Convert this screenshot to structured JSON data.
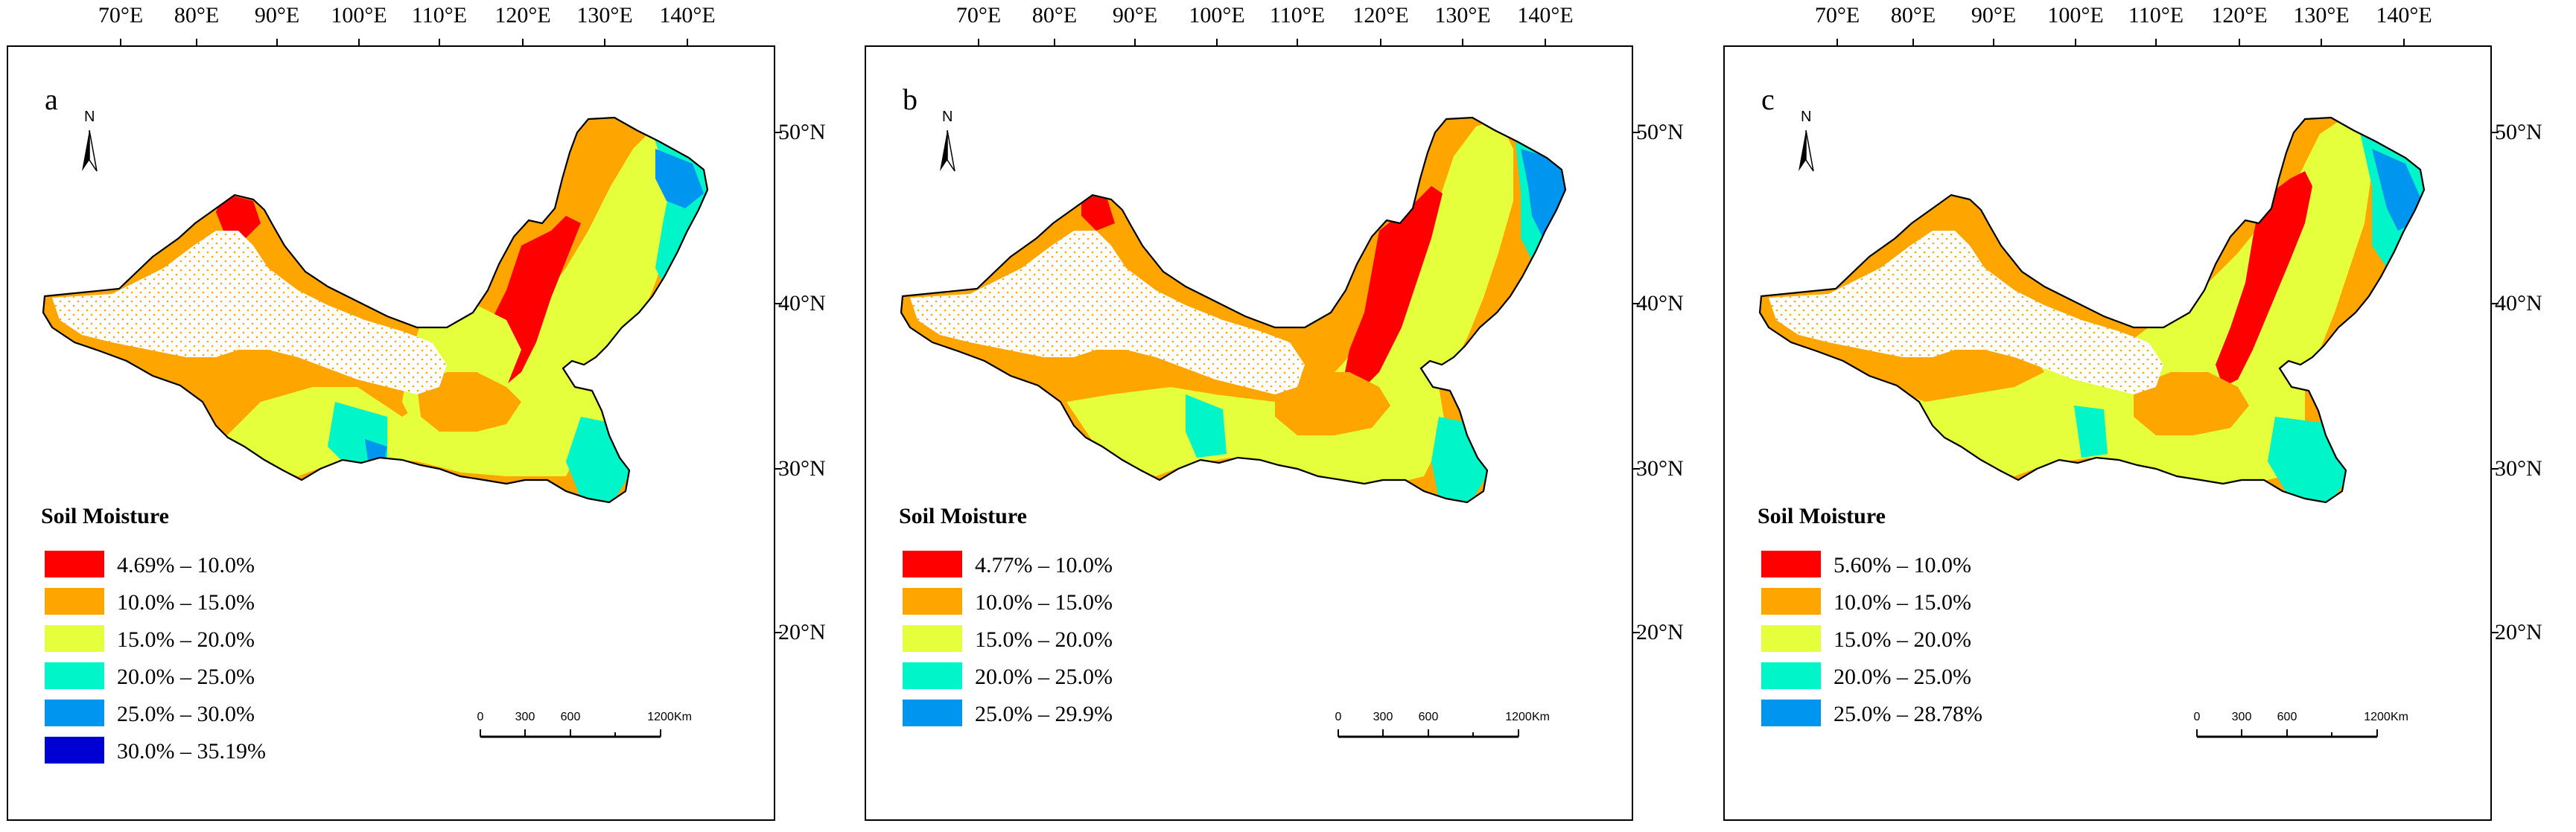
{
  "axes": {
    "longitude_ticks": [
      "70°E",
      "80°E",
      "90°E",
      "100°E",
      "110°E",
      "120°E",
      "130°E",
      "140°E"
    ],
    "latitude_ticks": [
      "50°N",
      "40°N",
      "30°N",
      "20°N"
    ]
  },
  "legend_title": "Soil Moisture",
  "scale_bar": {
    "labels": [
      "0",
      "300",
      "600",
      "1200"
    ],
    "unit": "Km"
  },
  "north_arrow_label": "N",
  "colors": {
    "red": "#ff0000",
    "orange": "#ffa500",
    "yellow": "#e6ff3c",
    "aqua": "#00f5c8",
    "blue": "#0096f0",
    "navy": "#0000d2",
    "stipple": "#ffa500",
    "boundary": "#000000"
  },
  "panels": [
    {
      "letter": "a",
      "legend": [
        {
          "label": "4.69% – 10.0%",
          "color": "#ff0000"
        },
        {
          "label": "10.0% – 15.0%",
          "color": "#ffa500"
        },
        {
          "label": "15.0% – 20.0%",
          "color": "#e6ff3c"
        },
        {
          "label": "20.0% – 25.0%",
          "color": "#00f5c8"
        },
        {
          "label": "25.0% – 30.0%",
          "color": "#0096f0"
        },
        {
          "label": "30.0% – 35.19%",
          "color": "#0000d2"
        }
      ]
    },
    {
      "letter": "b",
      "legend": [
        {
          "label": "4.77% – 10.0%",
          "color": "#ff0000"
        },
        {
          "label": "10.0% – 15.0%",
          "color": "#ffa500"
        },
        {
          "label": "15.0% – 20.0%",
          "color": "#e6ff3c"
        },
        {
          "label": "20.0% – 25.0%",
          "color": "#00f5c8"
        },
        {
          "label": "25.0% – 29.9%",
          "color": "#0096f0"
        }
      ]
    },
    {
      "letter": "c",
      "legend": [
        {
          "label": "5.60% – 10.0%",
          "color": "#ff0000"
        },
        {
          "label": "10.0% – 15.0%",
          "color": "#ffa500"
        },
        {
          "label": "15.0% – 20.0%",
          "color": "#e6ff3c"
        },
        {
          "label": "20.0% – 25.0%",
          "color": "#00f5c8"
        },
        {
          "label": "25.0% – 28.78%",
          "color": "#0096f0"
        }
      ]
    }
  ]
}
